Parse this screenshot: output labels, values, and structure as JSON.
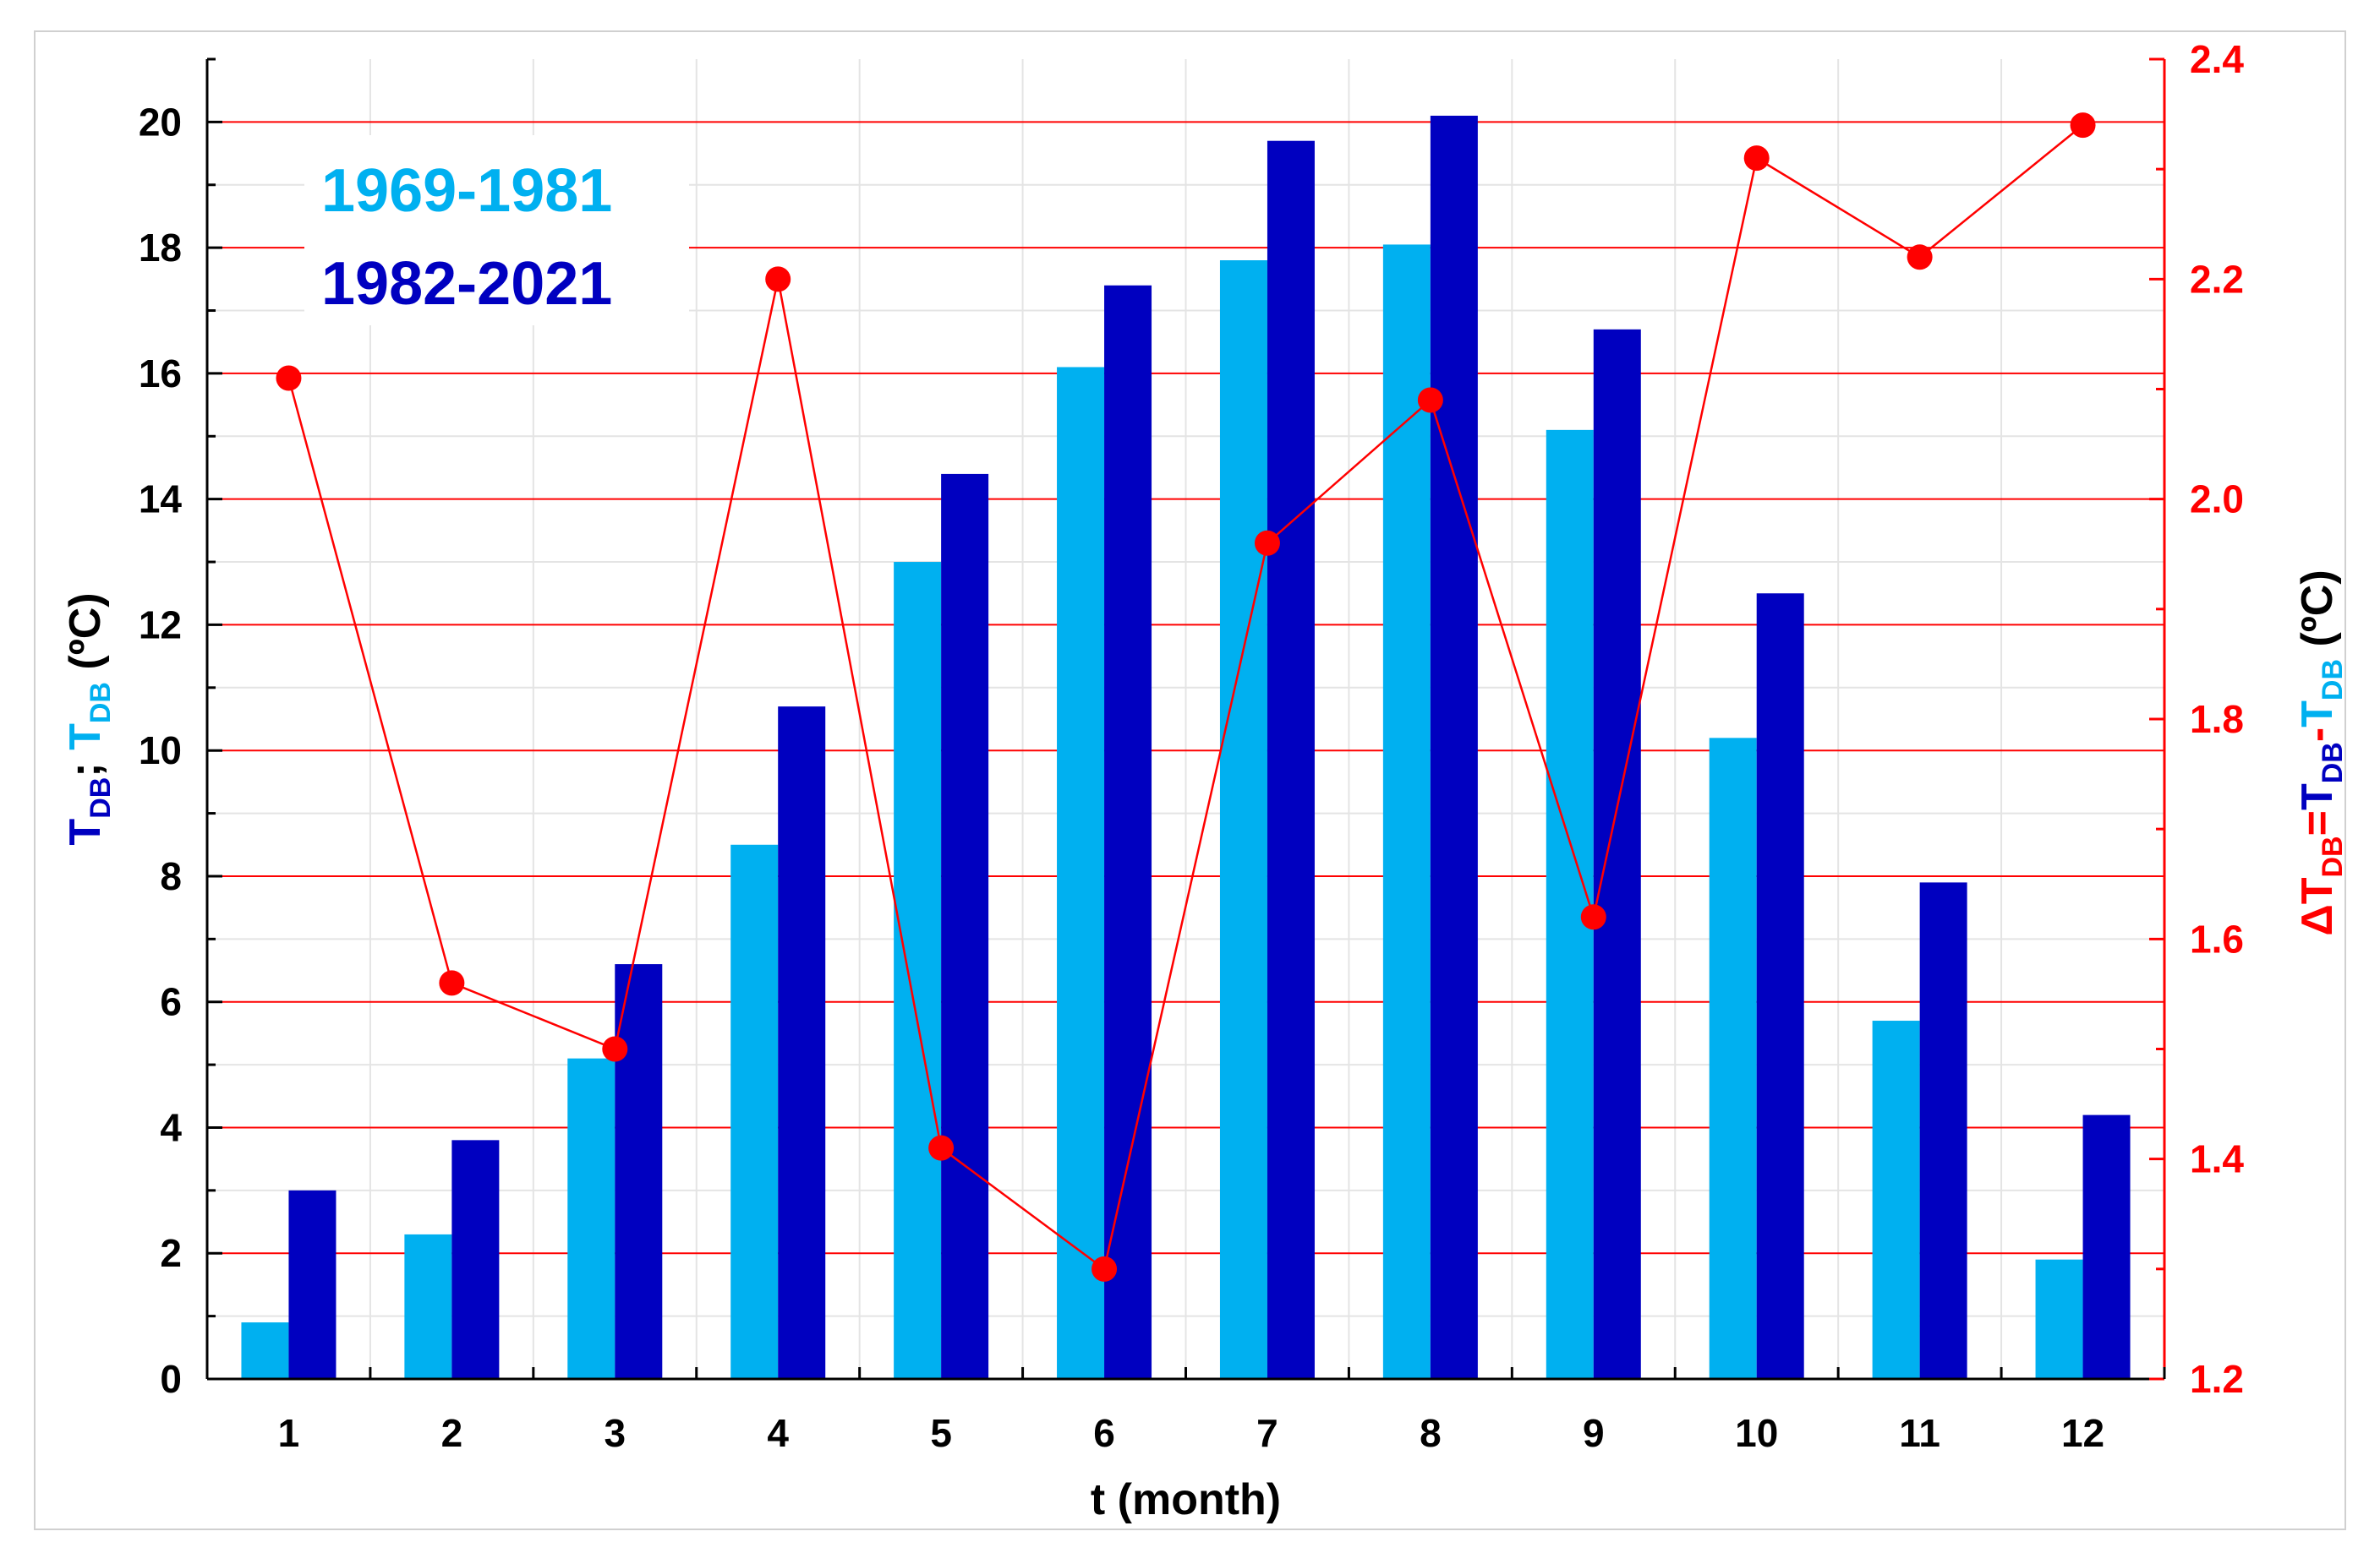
{
  "chart_data": {
    "type": "bar",
    "categories": [
      "1",
      "2",
      "3",
      "4",
      "5",
      "6",
      "7",
      "8",
      "9",
      "10",
      "11",
      "12"
    ],
    "series": [
      {
        "name": "1969-1981",
        "axis": "left",
        "kind": "bar",
        "color": "#00b0f0",
        "values": [
          0.9,
          2.3,
          5.1,
          8.5,
          13.0,
          16.1,
          17.8,
          18.05,
          15.1,
          10.2,
          5.7,
          1.9
        ]
      },
      {
        "name": "1982-2021",
        "axis": "left",
        "kind": "bar",
        "color": "#0000c0",
        "values": [
          3.0,
          3.8,
          6.6,
          10.7,
          14.4,
          17.4,
          19.7,
          20.1,
          16.7,
          12.5,
          7.9,
          4.2
        ]
      },
      {
        "axis": "right",
        "kind": "line",
        "color": "#ff0000",
        "values": [
          2.11,
          1.56,
          1.5,
          2.2,
          1.41,
          1.3,
          1.96,
          2.09,
          1.62,
          2.31,
          2.22,
          2.34
        ]
      }
    ],
    "xlabel": "t (month)",
    "ylabel_left": {
      "parts": [
        {
          "t": "T",
          "c": "#0000c0"
        },
        {
          "t": "DB",
          "c": "#0000c0",
          "sub": true
        },
        {
          "t": "; ",
          "c": "#000000"
        },
        {
          "t": "T",
          "c": "#00b0f0"
        },
        {
          "t": "DB",
          "c": "#00b0f0",
          "sub": true
        },
        {
          "t": "  (ºC)",
          "c": "#000000"
        }
      ]
    },
    "ylabel_right": {
      "parts": [
        {
          "t": "ΔT",
          "c": "#ff0000"
        },
        {
          "t": "DB",
          "c": "#ff0000",
          "sub": true
        },
        {
          "t": "=",
          "c": "#ff0000"
        },
        {
          "t": "T",
          "c": "#0000c0"
        },
        {
          "t": "DB",
          "c": "#0000c0",
          "sub": true
        },
        {
          "t": "-",
          "c": "#ff0000"
        },
        {
          "t": "T",
          "c": "#00b0f0"
        },
        {
          "t": "DB",
          "c": "#00b0f0",
          "sub": true
        },
        {
          "t": "  (ºC)",
          "c": "#000000"
        }
      ]
    },
    "ylim_left": [
      0,
      21
    ],
    "yticks_left": [
      "0",
      "2",
      "4",
      "6",
      "8",
      "10",
      "12",
      "14",
      "16",
      "18",
      "20"
    ],
    "ylim_right": [
      1.2,
      2.4
    ],
    "yticks_right": [
      "1.2",
      "1.4",
      "1.6",
      "1.8",
      "2.0",
      "2.2",
      "2.4"
    ],
    "grid": true,
    "grid_color": "#ff0000",
    "legend_position": "top-left"
  }
}
